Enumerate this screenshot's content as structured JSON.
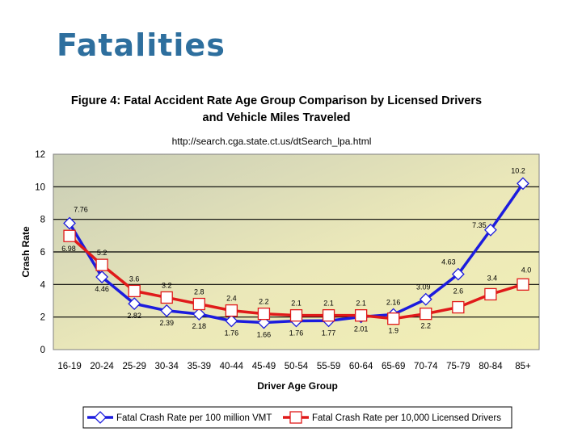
{
  "slide": {
    "title": "Fatalities"
  },
  "chart_data": {
    "type": "line",
    "title": "Figure 4: Fatal Accident Rate Age Group Comparison by Licensed Drivers",
    "subtitle": "and Vehicle Miles Traveled",
    "source": "http://search.cga.state.ct.us/dtSearch_lpa.html",
    "xlabel": "Driver Age Group",
    "ylabel": "Crash Rate",
    "ylim": [
      0,
      12
    ],
    "yticks": [
      "0",
      "2",
      "4",
      "6",
      "8",
      "10",
      "12"
    ],
    "grid": true,
    "legend_position": "bottom",
    "categories": [
      "16-19",
      "20-24",
      "25-29",
      "30-34",
      "35-39",
      "40-44",
      "45-49",
      "50-54",
      "55-59",
      "60-64",
      "65-69",
      "70-74",
      "75-79",
      "80-84",
      "85+"
    ],
    "series": [
      {
        "name": "Fatal Crash Rate per 100 million VMT",
        "color": "#1c1cde",
        "marker": "diamond",
        "values": [
          7.76,
          4.46,
          2.82,
          2.39,
          2.18,
          1.76,
          1.66,
          1.76,
          1.77,
          2.01,
          2.16,
          3.09,
          4.63,
          7.35,
          10.2
        ],
        "labels": [
          "7.76",
          "4.46",
          "2.82",
          "2.39",
          "2.18",
          "1.76",
          "1.66",
          "1.76",
          "1.77",
          "2.01",
          "2.16",
          "3.09",
          "4.63",
          "7.35",
          "10.2"
        ]
      },
      {
        "name": "Fatal Crash Rate per 10,000 Licensed Drivers",
        "color": "#e01a1a",
        "marker": "square",
        "values": [
          6.98,
          5.2,
          3.6,
          3.2,
          2.8,
          2.4,
          2.2,
          2.1,
          2.1,
          2.1,
          1.9,
          2.2,
          2.6,
          3.4,
          4.0
        ],
        "labels": [
          "6.98",
          "5.2",
          "3.6",
          "3.2",
          "2.8",
          "2.4",
          "2.2",
          "2.1",
          "2.1",
          "2.1",
          "1.9",
          "2.2",
          "2.6",
          "3.4",
          "4.0"
        ]
      }
    ]
  }
}
